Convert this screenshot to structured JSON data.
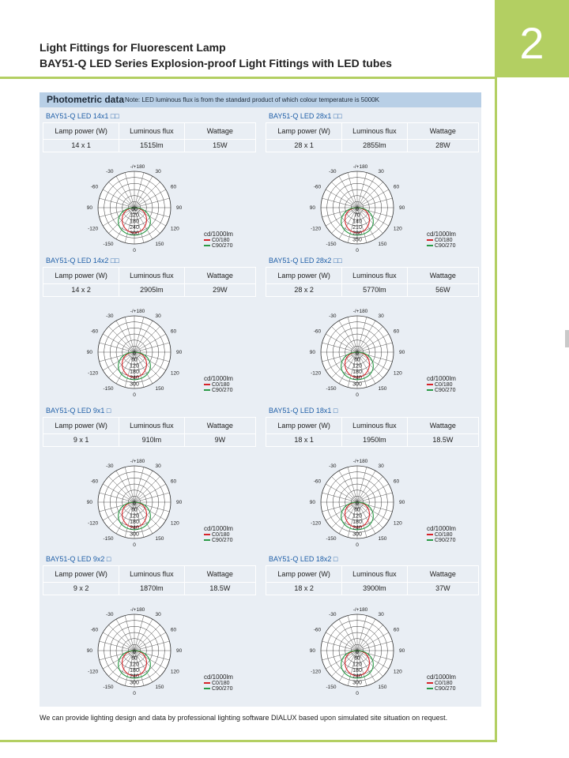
{
  "page": {
    "title_line1": "Light Fittings for Fluorescent Lamp",
    "title_line2": "BAY51-Q LED Series Explosion-proof Light Fittings with LED tubes",
    "chapter_number": "2",
    "accent_color": "#b3cf62"
  },
  "photometric": {
    "header_title": "Photometric data",
    "header_note": "Note: LED luminous flux is from the standard product of which colour temperature is 5000K",
    "col_headers": {
      "lamp_power": "Lamp power (W)",
      "luminous_flux": "Luminous flux",
      "wattage": "Wattage"
    },
    "unit_label": "cd/1000lm",
    "legend": [
      {
        "label": "C0/180",
        "color": "#d6242a"
      },
      {
        "label": "C90/270",
        "color": "#2a9a46"
      }
    ],
    "angle_labels": {
      "top": "-/+180",
      "left": [
        "-150",
        "-120",
        "-90",
        "-60",
        "-30"
      ],
      "right": [
        "150",
        "120",
        "90",
        "60",
        "30"
      ],
      "bottom": "0"
    },
    "products": [
      {
        "name": "BAY51-Q LED 14x1 □□",
        "lamp_power": "14 x 1",
        "luminous_flux": "1515lm",
        "wattage": "15W",
        "rings": [
          "60",
          "120",
          "180",
          "240",
          "300"
        ]
      },
      {
        "name": "BAY51-Q LED 28x1 □□",
        "lamp_power": "28 x 1",
        "luminous_flux": "2855lm",
        "wattage": "28W",
        "rings": [
          "0",
          "70",
          "140",
          "210",
          "280",
          "350"
        ]
      },
      {
        "name": "BAY51-Q LED 14x2 □□",
        "lamp_power": "14 x 2",
        "luminous_flux": "2905lm",
        "wattage": "29W",
        "rings": [
          "0",
          "60",
          "120",
          "180",
          "240",
          "300"
        ]
      },
      {
        "name": "BAY51-Q LED 28x2 □□",
        "lamp_power": "28 x 2",
        "luminous_flux": "5770lm",
        "wattage": "56W",
        "rings": [
          "0",
          "60",
          "120",
          "180",
          "240",
          "300"
        ]
      },
      {
        "name": "BAY51-Q LED 9x1 □",
        "lamp_power": "9 x 1",
        "luminous_flux": "910lm",
        "wattage": "9W",
        "rings": [
          "0",
          "60",
          "120",
          "180",
          "240",
          "300"
        ]
      },
      {
        "name": "BAY51-Q LED 18x1 □",
        "lamp_power": "18 x 1",
        "luminous_flux": "1950lm",
        "wattage": "18.5W",
        "rings": [
          "0",
          "60",
          "120",
          "180",
          "240",
          "300"
        ]
      },
      {
        "name": "BAY51-Q LED 9x2 □",
        "lamp_power": "9 x 2",
        "luminous_flux": "1870lm",
        "wattage": "18.5W",
        "rings": [
          "0",
          "60",
          "120",
          "180",
          "240",
          "300"
        ]
      },
      {
        "name": "BAY51-Q LED 18x2 □",
        "lamp_power": "18 x 2",
        "luminous_flux": "3900lm",
        "wattage": "37W",
        "rings": [
          "0",
          "60",
          "120",
          "180",
          "240",
          "300"
        ]
      }
    ]
  },
  "footer_note": "We can provide lighting design and data by professional lighting software DIALUX based upon simulated site situation on request."
}
